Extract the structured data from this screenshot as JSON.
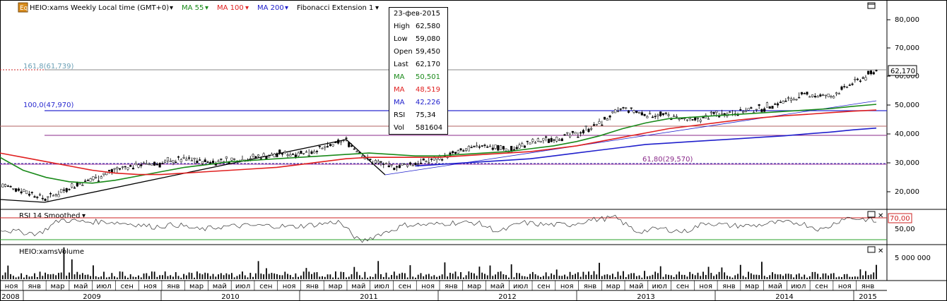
{
  "header": {
    "app_icon": "chart-options-icon",
    "instrument_label": "HEIO:xams Weekly Local time (GMT+0)",
    "ma55_label": "MA 55",
    "ma100_label": "MA 100",
    "ma200_label": "MA 200",
    "fib_label": "Fibonacci Extension 1"
  },
  "tooltip": {
    "date": "23-фев-2015",
    "rows": [
      {
        "key": "High",
        "value": "62,580",
        "color": "#000000"
      },
      {
        "key": "Low",
        "value": "59,080",
        "color": "#000000"
      },
      {
        "key": "Open",
        "value": "59,450",
        "color": "#000000"
      },
      {
        "key": "Last",
        "value": "62,170",
        "color": "#000000"
      },
      {
        "key": "MA",
        "value": "50,501",
        "color": "#1a8a1a"
      },
      {
        "key": "MA",
        "value": "48,519",
        "color": "#e02020"
      },
      {
        "key": "MA",
        "value": "42,226",
        "color": "#2020cc"
      },
      {
        "key": "RSI",
        "value": "75,34",
        "color": "#000000"
      },
      {
        "key": "Vol",
        "value": "581604",
        "color": "#000000"
      }
    ]
  },
  "fib_labels": {
    "level_161": "161,8(61,739)",
    "level_100": "100,0(47,970)",
    "level_61": "61,80(29,570)"
  },
  "price_axis": {
    "ticks": [
      "80,000",
      "70,000",
      "60,000",
      "50,000",
      "40,000",
      "30,000",
      "20,000"
    ],
    "last_price_label": "62,170"
  },
  "rsi_panel": {
    "title": "RSI 14 Smoothed",
    "level_label": "70,00",
    "tick_label": "50,00"
  },
  "volume_panel": {
    "title": "HEIO:xamsVolume",
    "tick_label": "5 000 000"
  },
  "time_axis": {
    "months": [
      "ноя",
      "янв",
      "мар",
      "май",
      "июл",
      "сен",
      "ноя",
      "янв",
      "мар",
      "май",
      "июл",
      "сен",
      "ноя",
      "янв",
      "мар",
      "май",
      "июл",
      "сен",
      "ноя",
      "янв",
      "мар",
      "май",
      "июл",
      "сен",
      "ноя",
      "янв",
      "мар",
      "май",
      "июл",
      "сен",
      "ноя",
      "янв",
      "мар",
      "май",
      "июл",
      "сен",
      "ноя",
      "янв"
    ],
    "years": [
      "2008",
      "2009",
      "2010",
      "2011",
      "2012",
      "2013",
      "2014",
      "2015"
    ]
  },
  "chart_data": {
    "type": "line",
    "title": "HEIO:xams Weekly",
    "x": [
      "2008-11",
      "2009-01",
      "2009-03",
      "2009-05",
      "2009-07",
      "2009-09",
      "2009-11",
      "2010-01",
      "2010-03",
      "2010-05",
      "2010-07",
      "2010-09",
      "2010-11",
      "2011-01",
      "2011-03",
      "2011-05",
      "2011-07",
      "2011-09",
      "2011-11",
      "2012-01",
      "2012-03",
      "2012-05",
      "2012-07",
      "2012-09",
      "2012-11",
      "2013-01",
      "2013-03",
      "2013-05",
      "2013-07",
      "2013-09",
      "2013-11",
      "2014-01",
      "2014-03",
      "2014-05",
      "2014-07",
      "2014-09",
      "2014-11",
      "2015-01",
      "2015-02"
    ],
    "series": [
      {
        "name": "HEIO:xams",
        "color": "#000000",
        "values": [
          22.5,
          20.5,
          17.5,
          21.5,
          24.5,
          27.5,
          29.5,
          30.0,
          31.5,
          30.5,
          31.0,
          32.0,
          33.0,
          33.5,
          35.0,
          38.0,
          31.0,
          28.5,
          30.0,
          31.5,
          34.0,
          36.5,
          34.5,
          37.0,
          38.5,
          40.0,
          44.0,
          49.0,
          47.0,
          46.5,
          44.5,
          47.0,
          48.0,
          49.0,
          51.5,
          54.0,
          53.0,
          58.0,
          62.17
        ]
      },
      {
        "name": "MA 55",
        "color": "#1a8a1a",
        "values": [
          32.0,
          27.5,
          25.0,
          23.5,
          23.0,
          24.0,
          25.5,
          27.0,
          28.5,
          29.5,
          30.5,
          31.0,
          31.5,
          32.0,
          32.5,
          33.0,
          33.5,
          33.0,
          32.5,
          32.5,
          33.0,
          33.5,
          34.0,
          35.0,
          36.0,
          37.5,
          39.5,
          42.0,
          44.0,
          45.5,
          46.0,
          46.5,
          47.0,
          47.5,
          48.0,
          48.5,
          49.0,
          49.8,
          50.5
        ]
      },
      {
        "name": "MA 100",
        "color": "#e02020",
        "values": [
          33.5,
          32.0,
          30.5,
          29.0,
          27.5,
          26.5,
          26.0,
          26.0,
          26.5,
          27.0,
          27.5,
          28.0,
          28.5,
          29.5,
          30.5,
          31.5,
          32.0,
          32.0,
          32.0,
          32.0,
          32.5,
          33.0,
          33.5,
          34.0,
          35.0,
          36.0,
          37.5,
          39.0,
          40.5,
          42.0,
          43.0,
          44.0,
          45.0,
          45.8,
          46.5,
          47.0,
          47.6,
          48.1,
          48.5
        ]
      },
      {
        "name": "MA 200",
        "color": "#2020cc",
        "values": [
          null,
          null,
          null,
          null,
          null,
          null,
          null,
          null,
          null,
          null,
          null,
          null,
          null,
          null,
          null,
          null,
          null,
          null,
          29.0,
          29.5,
          30.0,
          30.5,
          31.0,
          31.5,
          32.5,
          33.5,
          34.5,
          35.5,
          36.5,
          37.0,
          37.5,
          38.0,
          38.5,
          39.0,
          39.5,
          40.2,
          40.8,
          41.6,
          42.2
        ]
      }
    ],
    "fibonacci_levels": [
      61.739,
      47.97,
      29.57
    ],
    "ylim": [
      14,
      85
    ],
    "yticks": [
      80,
      70,
      60,
      50,
      40,
      30,
      20
    ],
    "grid": false,
    "legend": "top-left"
  }
}
